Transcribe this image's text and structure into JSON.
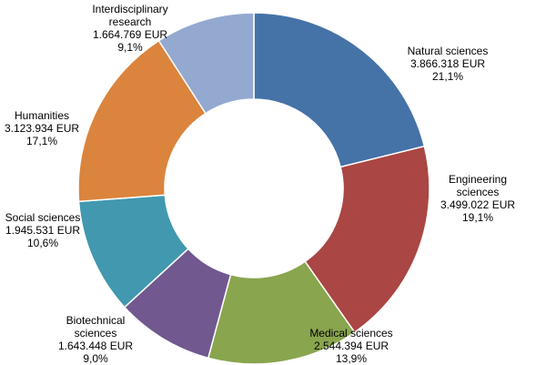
{
  "chart_data": {
    "type": "pie",
    "variant": "donut",
    "currency": "EUR",
    "slices": [
      {
        "lines": [
          "Natural sciences",
          "3.866.318 EUR",
          "21,1%"
        ],
        "name": "Natural sciences",
        "value": 3866318,
        "percent": 21.1,
        "color": "#4572a7"
      },
      {
        "lines": [
          "Engineering",
          "sciences",
          "3.499.022 EUR",
          "19,1%"
        ],
        "name": "Engineering sciences",
        "value": 3499022,
        "percent": 19.1,
        "color": "#aa4643"
      },
      {
        "lines": [
          "Medical sciences",
          "2.544.394 EUR",
          "13,9%"
        ],
        "name": "Medical sciences",
        "value": 2544394,
        "percent": 13.9,
        "color": "#89a54e"
      },
      {
        "lines": [
          "Biotechnical",
          "sciences",
          "1.643.448 EUR",
          "9,0%"
        ],
        "name": "Biotechnical sciences",
        "value": 1643448,
        "percent": 9.0,
        "color": "#71588f"
      },
      {
        "lines": [
          "Social sciences",
          "1.945.531 EUR",
          "10,6%"
        ],
        "name": "Social sciences",
        "value": 1945531,
        "percent": 10.6,
        "color": "#4198af"
      },
      {
        "lines": [
          "Humanities",
          "3.123.934 EUR",
          "17,1%"
        ],
        "name": "Humanities",
        "value": 3123934,
        "percent": 17.1,
        "color": "#db843d"
      },
      {
        "lines": [
          "Interdisciplinary",
          "research",
          "1.664.769 EUR",
          "9,1%"
        ],
        "name": "Interdisciplinary research",
        "value": 1664769,
        "percent": 9.1,
        "color": "#93a9cf"
      }
    ]
  }
}
